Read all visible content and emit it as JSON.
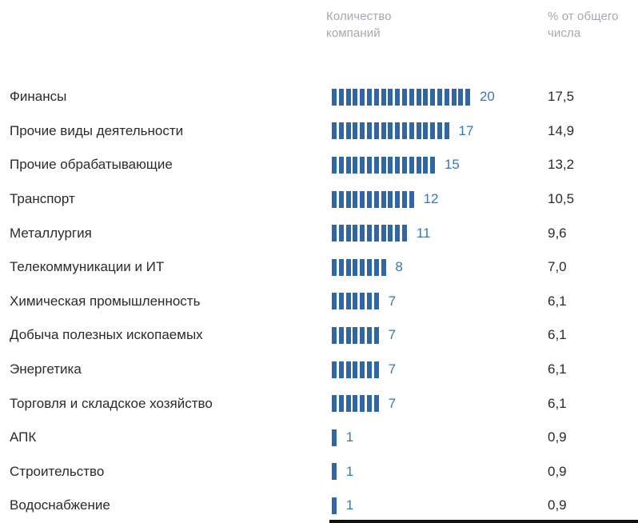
{
  "chart": {
    "count_header": "Количество компаний",
    "percent_header": "% от общего числа"
  },
  "chart_data": {
    "type": "bar",
    "orientation": "horizontal",
    "style": "segmented-unit-bars",
    "title": "",
    "xlabel": "Количество компаний",
    "ylabel": "",
    "xlim": [
      0,
      20
    ],
    "grid": false,
    "legend": "none",
    "categories": [
      "Финансы",
      "Прочие виды деятельности",
      "Прочие обрабатывающие",
      "Транспорт",
      "Металлургия",
      "Телекоммуникации и ИТ",
      "Химическая промышленность",
      "Добыча полезных ископаемых",
      "Энергетика",
      "Торговля и складское хозяйство",
      "АПК",
      "Строительство",
      "Водоснабжение"
    ],
    "values": [
      20,
      17,
      15,
      12,
      11,
      8,
      7,
      7,
      7,
      7,
      1,
      1,
      1
    ],
    "percent_labels": [
      "17,5",
      "14,9",
      "13,2",
      "10,5",
      "9,6",
      "7,0",
      "6,1",
      "6,1",
      "6,1",
      "6,1",
      "0,9",
      "0,9",
      "0,9"
    ],
    "column_headers": [
      "Количество компаний",
      "% от общего числа"
    ],
    "colors": {
      "bar": "#2f66a3",
      "count_text": "#3677bc",
      "label_text": "#2b2b2b",
      "header_text": "#a3a9ae"
    }
  }
}
